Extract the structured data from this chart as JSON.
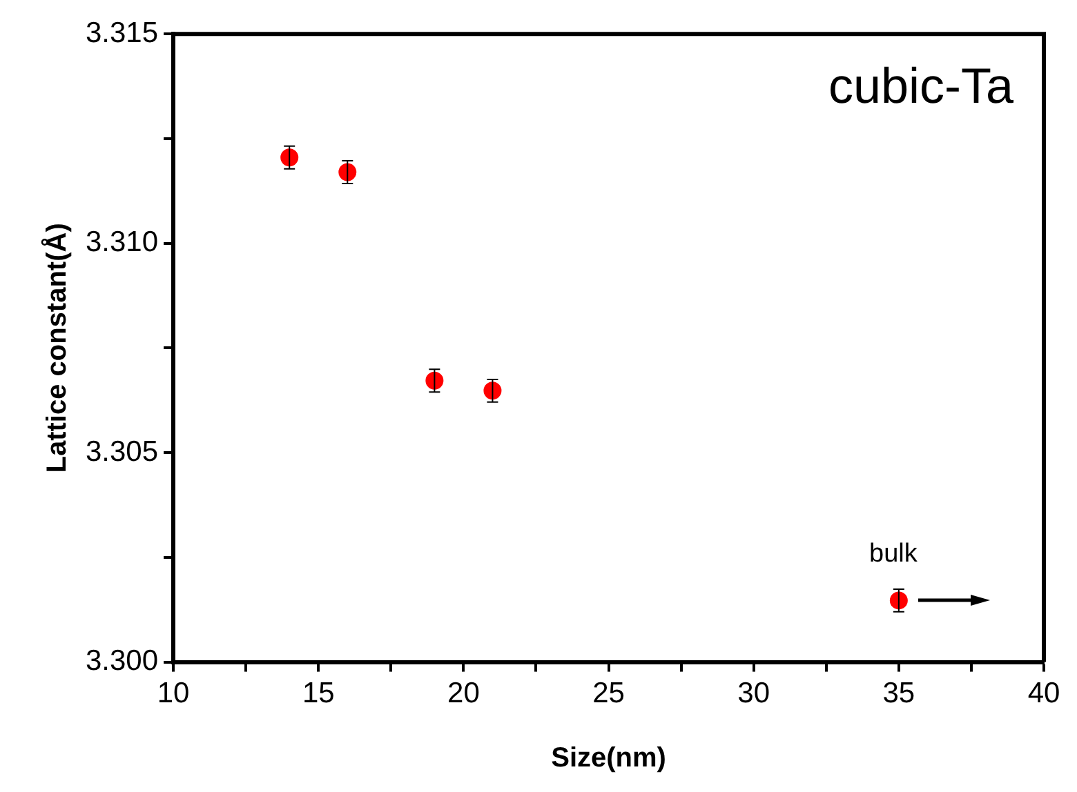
{
  "chart_data": {
    "type": "scatter",
    "xlabel": "Size(nm)",
    "ylabel": "Lattice constant(Å)",
    "x": [
      14,
      16,
      19,
      21,
      35
    ],
    "series": [
      {
        "color": "#ff0000",
        "values": [
          3.31205,
          3.3117,
          3.30672,
          3.30648,
          3.30147
        ],
        "errors": [
          0.00027,
          0.00027,
          0.00027,
          0.00027,
          0.00027
        ]
      }
    ],
    "xlim": [
      10,
      40
    ],
    "xticks": [
      10,
      {
        "value": 12.5,
        "label": null
      },
      15,
      {
        "value": 17.5,
        "label": null
      },
      20,
      {
        "value": 22.5,
        "label": null
      },
      25,
      {
        "value": 27.5,
        "label": null
      },
      30,
      {
        "value": 32.5,
        "label": null
      },
      35,
      {
        "value": 37.5,
        "label": null
      },
      40
    ],
    "ylim": [
      3.3,
      3.315
    ],
    "yticks": [
      {
        "value": 3.3,
        "label": "3.300"
      },
      {
        "value": 3.3025,
        "label": null
      },
      {
        "value": 3.305,
        "label": "3.305"
      },
      {
        "value": 3.3075,
        "label": null
      },
      {
        "value": 3.31,
        "label": "3.310"
      },
      {
        "value": 3.3125,
        "label": null
      },
      {
        "value": 3.315,
        "label": "3.315"
      }
    ],
    "annotations": [
      "cubic-Ta",
      "bulk"
    ],
    "marker": "circle",
    "grid": false,
    "legend": false
  }
}
